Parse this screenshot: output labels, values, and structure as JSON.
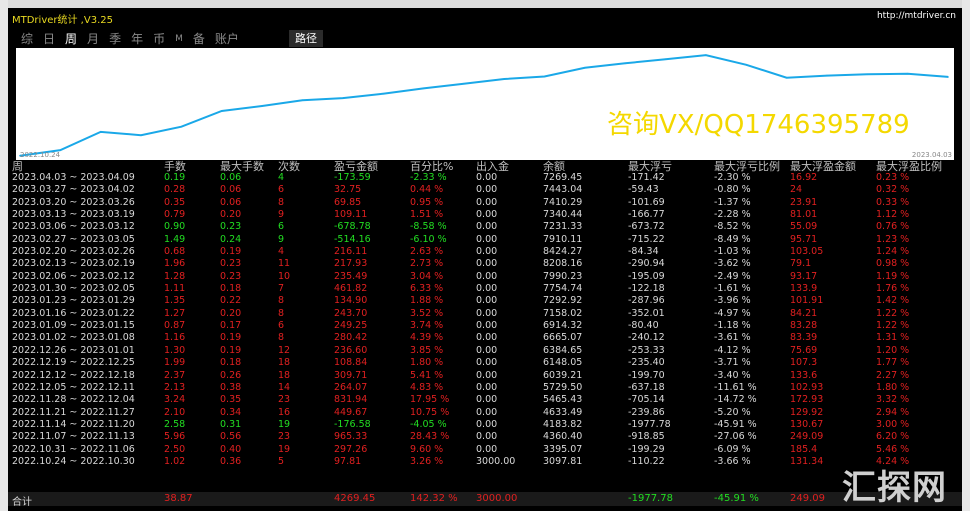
{
  "window": {
    "title": "MTDriver统计 ,V3.25",
    "url": "http://mtdriver.cn"
  },
  "tabs": [
    {
      "label": "综"
    },
    {
      "label": "日"
    },
    {
      "label": "周"
    },
    {
      "label": "月"
    },
    {
      "label": "季"
    },
    {
      "label": "年"
    },
    {
      "label": "币"
    },
    {
      "label": "M"
    },
    {
      "label": "备"
    },
    {
      "label": "账户"
    }
  ],
  "active_tab": "周",
  "path_button": "路径",
  "chart": {
    "date_start": "2022.10.24",
    "date_end": "2023.04.03",
    "line_color": "#1aa8e8"
  },
  "chart_data": {
    "type": "line",
    "x": [
      "2022.10.24",
      "2022.10.31",
      "2022.11.07",
      "2022.11.14",
      "2022.11.21",
      "2022.11.28",
      "2022.12.05",
      "2022.12.12",
      "2022.12.19",
      "2022.12.26",
      "2023.01.02",
      "2023.01.09",
      "2023.01.16",
      "2023.01.23",
      "2023.01.30",
      "2023.02.06",
      "2023.02.13",
      "2023.02.20",
      "2023.02.27",
      "2023.03.06",
      "2023.03.13",
      "2023.03.20",
      "2023.03.27",
      "2023.04.03"
    ],
    "values": [
      3097.81,
      3395.07,
      4360.4,
      4183.82,
      4633.49,
      5465.43,
      5729.5,
      6039.21,
      6148.05,
      6384.65,
      6665.07,
      6914.32,
      7158.02,
      7292.92,
      7754.74,
      7990.23,
      8208.16,
      8424.27,
      7910.11,
      7231.33,
      7340.44,
      7410.29,
      7443.04,
      7269.45
    ]
  },
  "watermark": "咨询VX/QQ1746395789",
  "corner_logo": "汇探网",
  "table": {
    "headers": [
      "周",
      "手数",
      "最大手数",
      "次数",
      "盈亏金额",
      "百分比%",
      "出入金",
      "余额",
      "最大浮亏",
      "最大浮亏比例",
      "最大浮盈金额",
      "最大浮盈比例"
    ],
    "rows": [
      {
        "week": "2023.04.03 ~ 2023.04.09",
        "lots": "0.19",
        "max_lots": "0.06",
        "count": "4",
        "pl": "-173.59",
        "pct": "-2.33 %",
        "io": "0.00",
        "bal": "7269.45",
        "mdd": "-171.42",
        "mddp": "-2.30 %",
        "mfe": "16.92",
        "mfep": "0.23 %",
        "c": "g"
      },
      {
        "week": "2023.03.27 ~ 2023.04.02",
        "lots": "0.28",
        "max_lots": "0.06",
        "count": "6",
        "pl": "32.75",
        "pct": "0.44 %",
        "io": "0.00",
        "bal": "7443.04",
        "mdd": "-59.43",
        "mddp": "-0.80 %",
        "mfe": "24",
        "mfep": "0.32 %",
        "c": "r"
      },
      {
        "week": "2023.03.20 ~ 2023.03.26",
        "lots": "0.35",
        "max_lots": "0.06",
        "count": "8",
        "pl": "69.85",
        "pct": "0.95 %",
        "io": "0.00",
        "bal": "7410.29",
        "mdd": "-101.69",
        "mddp": "-1.37 %",
        "mfe": "23.91",
        "mfep": "0.33 %",
        "c": "r"
      },
      {
        "week": "2023.03.13 ~ 2023.03.19",
        "lots": "0.79",
        "max_lots": "0.20",
        "count": "9",
        "pl": "109.11",
        "pct": "1.51 %",
        "io": "0.00",
        "bal": "7340.44",
        "mdd": "-166.77",
        "mddp": "-2.28 %",
        "mfe": "81.01",
        "mfep": "1.12 %",
        "c": "r"
      },
      {
        "week": "2023.03.06 ~ 2023.03.12",
        "lots": "0.90",
        "max_lots": "0.23",
        "count": "6",
        "pl": "-678.78",
        "pct": "-8.58 %",
        "io": "0.00",
        "bal": "7231.33",
        "mdd": "-673.72",
        "mddp": "-8.52 %",
        "mfe": "55.09",
        "mfep": "0.76 %",
        "c": "g"
      },
      {
        "week": "2023.02.27 ~ 2023.03.05",
        "lots": "1.49",
        "max_lots": "0.24",
        "count": "9",
        "pl": "-514.16",
        "pct": "-6.10 %",
        "io": "0.00",
        "bal": "7910.11",
        "mdd": "-715.22",
        "mddp": "-8.49 %",
        "mfe": "95.71",
        "mfep": "1.23 %",
        "c": "g"
      },
      {
        "week": "2023.02.20 ~ 2023.02.26",
        "lots": "0.68",
        "max_lots": "0.19",
        "count": "4",
        "pl": "216.11",
        "pct": "2.63 %",
        "io": "0.00",
        "bal": "8424.27",
        "mdd": "-84.34",
        "mddp": "-1.03 %",
        "mfe": "103.05",
        "mfep": "1.24 %",
        "c": "r"
      },
      {
        "week": "2023.02.13 ~ 2023.02.19",
        "lots": "1.96",
        "max_lots": "0.23",
        "count": "11",
        "pl": "217.93",
        "pct": "2.73 %",
        "io": "0.00",
        "bal": "8208.16",
        "mdd": "-290.94",
        "mddp": "-3.62 %",
        "mfe": "79.1",
        "mfep": "0.98 %",
        "c": "r"
      },
      {
        "week": "2023.02.06 ~ 2023.02.12",
        "lots": "1.28",
        "max_lots": "0.23",
        "count": "10",
        "pl": "235.49",
        "pct": "3.04 %",
        "io": "0.00",
        "bal": "7990.23",
        "mdd": "-195.09",
        "mddp": "-2.49 %",
        "mfe": "93.17",
        "mfep": "1.19 %",
        "c": "r"
      },
      {
        "week": "2023.01.30 ~ 2023.02.05",
        "lots": "1.11",
        "max_lots": "0.18",
        "count": "7",
        "pl": "461.82",
        "pct": "6.33 %",
        "io": "0.00",
        "bal": "7754.74",
        "mdd": "-122.18",
        "mddp": "-1.61 %",
        "mfe": "133.9",
        "mfep": "1.76 %",
        "c": "r"
      },
      {
        "week": "2023.01.23 ~ 2023.01.29",
        "lots": "1.35",
        "max_lots": "0.22",
        "count": "8",
        "pl": "134.90",
        "pct": "1.88 %",
        "io": "0.00",
        "bal": "7292.92",
        "mdd": "-287.96",
        "mddp": "-3.96 %",
        "mfe": "101.91",
        "mfep": "1.42 %",
        "c": "r"
      },
      {
        "week": "2023.01.16 ~ 2023.01.22",
        "lots": "1.27",
        "max_lots": "0.20",
        "count": "8",
        "pl": "243.70",
        "pct": "3.52 %",
        "io": "0.00",
        "bal": "7158.02",
        "mdd": "-352.01",
        "mddp": "-4.97 %",
        "mfe": "84.21",
        "mfep": "1.22 %",
        "c": "r"
      },
      {
        "week": "2023.01.09 ~ 2023.01.15",
        "lots": "0.87",
        "max_lots": "0.17",
        "count": "6",
        "pl": "249.25",
        "pct": "3.74 %",
        "io": "0.00",
        "bal": "6914.32",
        "mdd": "-80.40",
        "mddp": "-1.18 %",
        "mfe": "83.28",
        "mfep": "1.22 %",
        "c": "r"
      },
      {
        "week": "2023.01.02 ~ 2023.01.08",
        "lots": "1.16",
        "max_lots": "0.19",
        "count": "8",
        "pl": "280.42",
        "pct": "4.39 %",
        "io": "0.00",
        "bal": "6665.07",
        "mdd": "-240.12",
        "mddp": "-3.61 %",
        "mfe": "83.39",
        "mfep": "1.31 %",
        "c": "r"
      },
      {
        "week": "2022.12.26 ~ 2023.01.01",
        "lots": "1.30",
        "max_lots": "0.19",
        "count": "12",
        "pl": "236.60",
        "pct": "3.85 %",
        "io": "0.00",
        "bal": "6384.65",
        "mdd": "-253.33",
        "mddp": "-4.12 %",
        "mfe": "75.69",
        "mfep": "1.20 %",
        "c": "r"
      },
      {
        "week": "2022.12.19 ~ 2022.12.25",
        "lots": "1.99",
        "max_lots": "0.18",
        "count": "18",
        "pl": "108.84",
        "pct": "1.80 %",
        "io": "0.00",
        "bal": "6148.05",
        "mdd": "-235.40",
        "mddp": "-3.71 %",
        "mfe": "107.3",
        "mfep": "1.77 %",
        "c": "r"
      },
      {
        "week": "2022.12.12 ~ 2022.12.18",
        "lots": "2.37",
        "max_lots": "0.26",
        "count": "18",
        "pl": "309.71",
        "pct": "5.41 %",
        "io": "0.00",
        "bal": "6039.21",
        "mdd": "-199.70",
        "mddp": "-3.40 %",
        "mfe": "133.6",
        "mfep": "2.27 %",
        "c": "r"
      },
      {
        "week": "2022.12.05 ~ 2022.12.11",
        "lots": "2.13",
        "max_lots": "0.38",
        "count": "14",
        "pl": "264.07",
        "pct": "4.83 %",
        "io": "0.00",
        "bal": "5729.50",
        "mdd": "-637.18",
        "mddp": "-11.61 %",
        "mfe": "102.93",
        "mfep": "1.80 %",
        "c": "r"
      },
      {
        "week": "2022.11.28 ~ 2022.12.04",
        "lots": "3.24",
        "max_lots": "0.35",
        "count": "23",
        "pl": "831.94",
        "pct": "17.95 %",
        "io": "0.00",
        "bal": "5465.43",
        "mdd": "-705.14",
        "mddp": "-14.72 %",
        "mfe": "172.93",
        "mfep": "3.32 %",
        "c": "r"
      },
      {
        "week": "2022.11.21 ~ 2022.11.27",
        "lots": "2.10",
        "max_lots": "0.34",
        "count": "16",
        "pl": "449.67",
        "pct": "10.75 %",
        "io": "0.00",
        "bal": "4633.49",
        "mdd": "-239.86",
        "mddp": "-5.20 %",
        "mfe": "129.92",
        "mfep": "2.94 %",
        "c": "r"
      },
      {
        "week": "2022.11.14 ~ 2022.11.20",
        "lots": "2.58",
        "max_lots": "0.31",
        "count": "19",
        "pl": "-176.58",
        "pct": "-4.05 %",
        "io": "0.00",
        "bal": "4183.82",
        "mdd": "-1977.78",
        "mddp": "-45.91 %",
        "mfe": "130.67",
        "mfep": "3.00 %",
        "c": "g"
      },
      {
        "week": "2022.11.07 ~ 2022.11.13",
        "lots": "5.96",
        "max_lots": "0.56",
        "count": "23",
        "pl": "965.33",
        "pct": "28.43 %",
        "io": "0.00",
        "bal": "4360.40",
        "mdd": "-918.85",
        "mddp": "-27.06 %",
        "mfe": "249.09",
        "mfep": "6.20 %",
        "c": "r"
      },
      {
        "week": "2022.10.31 ~ 2022.11.06",
        "lots": "2.50",
        "max_lots": "0.40",
        "count": "19",
        "pl": "297.26",
        "pct": "9.60 %",
        "io": "0.00",
        "bal": "3395.07",
        "mdd": "-199.29",
        "mddp": "-6.09 %",
        "mfe": "185.4",
        "mfep": "5.46 %",
        "c": "r"
      },
      {
        "week": "2022.10.24 ~ 2022.10.30",
        "lots": "1.02",
        "max_lots": "0.36",
        "count": "5",
        "pl": "97.81",
        "pct": "3.26 %",
        "io": "3000.00",
        "bal": "3097.81",
        "mdd": "-110.22",
        "mddp": "-3.66 %",
        "mfe": "131.34",
        "mfep": "4.24 %",
        "c": "r"
      }
    ],
    "footer": {
      "label": "合计",
      "lots": "38.87",
      "pl": "4269.45",
      "pct": "142.32 %",
      "io": "3000.00",
      "mdd": "-1977.78",
      "mddp": "-45.91 %",
      "mfe": "249.09"
    }
  }
}
